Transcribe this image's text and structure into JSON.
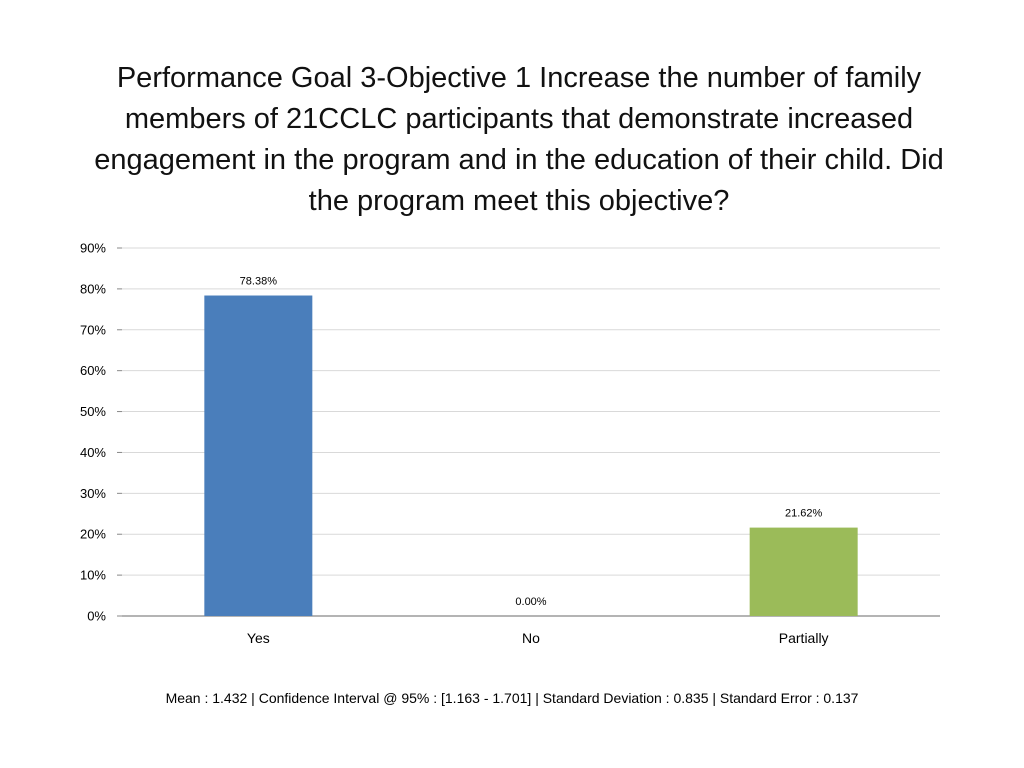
{
  "chart_data": {
    "type": "bar",
    "title": "Performance Goal 3-Objective 1 Increase the number of family members of 21CCLC participants that demonstrate increased engagement in the program and in the education of their child. Did the program meet this objective?",
    "categories": [
      "Yes",
      "No",
      "Partially"
    ],
    "values": [
      78.38,
      0.0,
      21.62
    ],
    "data_labels": [
      "78.38%",
      "0.00%",
      "21.62%"
    ],
    "colors": [
      "#4a7ebb",
      "#c0504d",
      "#9bbb59"
    ],
    "ylim": [
      0,
      90
    ],
    "yticks": [
      0,
      10,
      20,
      30,
      40,
      50,
      60,
      70,
      80,
      90
    ],
    "ytick_labels": [
      "0%",
      "10%",
      "20%",
      "30%",
      "40%",
      "50%",
      "60%",
      "70%",
      "80%",
      "90%"
    ],
    "xlabel": "",
    "ylabel": "",
    "grid": true,
    "legend": "none"
  },
  "footer": {
    "stats": "Mean : 1.432  | Confidence Interval @ 95% : [1.163 - 1.701]  |  Standard Deviation : 0.835  |  Standard Error : 0.137"
  }
}
